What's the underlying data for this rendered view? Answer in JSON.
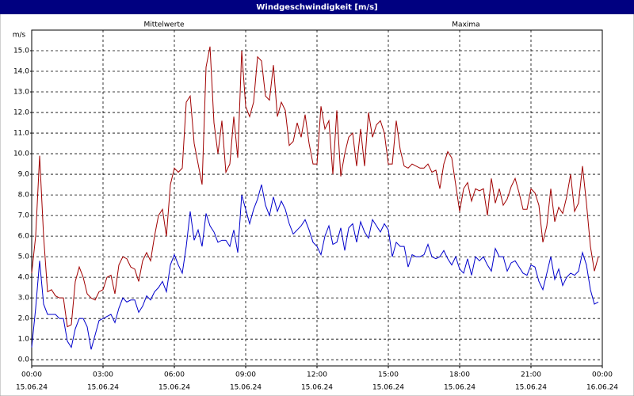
{
  "chart_data": {
    "type": "line",
    "title": "Windgeschwindigkeit [m/s]",
    "ylabel": "m/s",
    "grid": true,
    "xlim": [
      0,
      1440
    ],
    "xticks": [
      {
        "value": 0,
        "label": "00:00",
        "date": "15.06.24"
      },
      {
        "value": 180,
        "label": "03:00",
        "date": "15.06.24"
      },
      {
        "value": 360,
        "label": "06:00",
        "date": "15.06.24"
      },
      {
        "value": 540,
        "label": "09:00",
        "date": "15.06.24"
      },
      {
        "value": 720,
        "label": "12:00",
        "date": "15.06.24"
      },
      {
        "value": 900,
        "label": "15:00",
        "date": "15.06.24"
      },
      {
        "value": 1080,
        "label": "18:00",
        "date": "15.06.24"
      },
      {
        "value": 1260,
        "label": "21:00",
        "date": "15.06.24"
      },
      {
        "value": 1440,
        "label": "00:00",
        "date": "16.06.24"
      }
    ],
    "ylim": [
      -0.3,
      16
    ],
    "yticks": [
      {
        "value": 0,
        "label": "0.0"
      },
      {
        "value": 1,
        "label": "1.0"
      },
      {
        "value": 2,
        "label": "2.0"
      },
      {
        "value": 3,
        "label": "3.0"
      },
      {
        "value": 4,
        "label": "4.0"
      },
      {
        "value": 5,
        "label": "5.0"
      },
      {
        "value": 6,
        "label": "6.0"
      },
      {
        "value": 7,
        "label": "7.0"
      },
      {
        "value": 8,
        "label": "8.0"
      },
      {
        "value": 9,
        "label": "9.0"
      },
      {
        "value": 10,
        "label": "10.0"
      },
      {
        "value": 11,
        "label": "11.0"
      },
      {
        "value": 12,
        "label": "12.0"
      },
      {
        "value": 13,
        "label": "13.0"
      },
      {
        "value": 14,
        "label": "14.0"
      },
      {
        "value": 15,
        "label": "15.0"
      }
    ],
    "x": [
      0,
      10,
      20,
      30,
      40,
      50,
      60,
      70,
      80,
      90,
      100,
      110,
      120,
      130,
      140,
      150,
      160,
      170,
      180,
      190,
      200,
      210,
      220,
      230,
      240,
      250,
      260,
      270,
      280,
      290,
      300,
      310,
      320,
      330,
      340,
      350,
      360,
      370,
      380,
      390,
      400,
      410,
      420,
      430,
      440,
      450,
      460,
      470,
      480,
      490,
      500,
      510,
      520,
      530,
      540,
      550,
      560,
      570,
      580,
      590,
      600,
      610,
      620,
      630,
      640,
      650,
      660,
      670,
      680,
      690,
      700,
      710,
      720,
      730,
      740,
      750,
      760,
      770,
      780,
      790,
      800,
      810,
      820,
      830,
      840,
      850,
      860,
      870,
      880,
      890,
      900,
      910,
      920,
      930,
      940,
      950,
      960,
      970,
      980,
      990,
      1000,
      1010,
      1020,
      1030,
      1040,
      1050,
      1060,
      1070,
      1080,
      1090,
      1100,
      1110,
      1120,
      1130,
      1140,
      1150,
      1160,
      1170,
      1180,
      1190,
      1200,
      1210,
      1220,
      1230,
      1240,
      1250,
      1260,
      1270,
      1280,
      1290,
      1300,
      1310,
      1320,
      1330,
      1340,
      1350,
      1360,
      1370,
      1380,
      1390,
      1400,
      1410,
      1420,
      1430
    ],
    "series": [
      {
        "name": "Mittelwerte",
        "color": "#0000cc",
        "values": [
          0.6,
          2.5,
          4.8,
          2.7,
          2.2,
          2.2,
          2.2,
          2.0,
          2.0,
          0.9,
          0.6,
          1.5,
          2.0,
          2.0,
          1.6,
          0.5,
          1.2,
          1.9,
          2.0,
          2.1,
          2.2,
          1.8,
          2.5,
          3.0,
          2.8,
          2.9,
          2.9,
          2.3,
          2.6,
          3.1,
          2.9,
          3.3,
          3.5,
          3.8,
          3.3,
          4.6,
          5.1,
          4.6,
          4.2,
          5.5,
          7.2,
          5.8,
          6.3,
          5.5,
          7.1,
          6.5,
          6.2,
          5.7,
          5.8,
          5.8,
          5.5,
          6.3,
          5.2,
          8.0,
          7.3,
          6.6,
          7.3,
          7.8,
          8.5,
          7.5,
          7.0,
          7.9,
          7.2,
          7.7,
          7.3,
          6.6,
          6.1,
          6.3,
          6.5,
          6.8,
          6.3,
          5.7,
          5.5,
          5.1,
          6.0,
          6.5,
          5.6,
          5.7,
          6.4,
          5.3,
          6.4,
          6.6,
          5.7,
          6.7,
          6.2,
          5.9,
          6.8,
          6.5,
          6.2,
          6.6,
          6.3,
          5.0,
          5.7,
          5.5,
          5.5,
          4.5,
          5.1,
          5.0,
          5.0,
          5.1,
          5.6,
          5.0,
          4.9,
          5.0,
          5.3,
          4.9,
          4.6,
          5.0,
          4.4,
          4.2,
          4.9,
          4.1,
          5.0,
          4.8,
          5.0,
          4.6,
          4.3,
          5.4,
          5.0,
          5.0,
          4.3,
          4.7,
          4.8,
          4.5,
          4.2,
          4.1,
          4.6,
          4.5,
          3.8,
          3.4,
          4.2,
          5.0,
          3.9,
          4.4,
          3.6,
          4.0,
          4.2,
          4.1,
          4.3,
          5.2,
          4.6,
          3.4,
          2.7,
          2.8
        ]
      },
      {
        "name": "Maxima",
        "color": "#a00000",
        "values": [
          4.2,
          6.0,
          9.9,
          6.0,
          3.3,
          3.4,
          3.1,
          3.0,
          3.0,
          1.6,
          1.7,
          3.8,
          4.5,
          4.0,
          3.2,
          3.0,
          2.9,
          3.3,
          3.4,
          4.0,
          4.1,
          3.2,
          4.6,
          5.0,
          4.9,
          4.5,
          4.4,
          3.8,
          4.8,
          5.2,
          4.8,
          6.0,
          7.0,
          7.3,
          6.0,
          8.5,
          9.3,
          9.1,
          9.3,
          12.5,
          12.8,
          10.5,
          9.5,
          8.5,
          14.2,
          15.2,
          11.5,
          10.0,
          11.6,
          9.1,
          9.5,
          11.8,
          9.8,
          15.0,
          12.3,
          11.8,
          12.5,
          14.7,
          14.5,
          12.8,
          12.6,
          14.3,
          11.8,
          12.5,
          12.1,
          10.4,
          10.6,
          11.5,
          10.8,
          11.9,
          10.5,
          9.5,
          9.5,
          12.3,
          11.2,
          11.6,
          9.0,
          12.1,
          8.9,
          10.0,
          10.8,
          11.0,
          9.4,
          11.2,
          9.4,
          12.0,
          10.8,
          11.4,
          11.6,
          11.0,
          9.5,
          9.5,
          11.6,
          10.2,
          9.4,
          9.3,
          9.5,
          9.4,
          9.3,
          9.3,
          9.5,
          9.1,
          9.2,
          8.3,
          9.5,
          10.1,
          9.8,
          8.5,
          7.2,
          8.3,
          8.6,
          7.7,
          8.3,
          8.2,
          8.3,
          7.0,
          8.8,
          7.6,
          8.3,
          7.5,
          7.8,
          8.4,
          8.8,
          8.1,
          7.3,
          7.3,
          8.3,
          8.1,
          7.5,
          5.7,
          6.5,
          8.3,
          6.7,
          7.4,
          7.1,
          7.9,
          9.0,
          7.2,
          7.6,
          9.4,
          7.6,
          5.5,
          4.3,
          5.0
        ]
      }
    ]
  }
}
